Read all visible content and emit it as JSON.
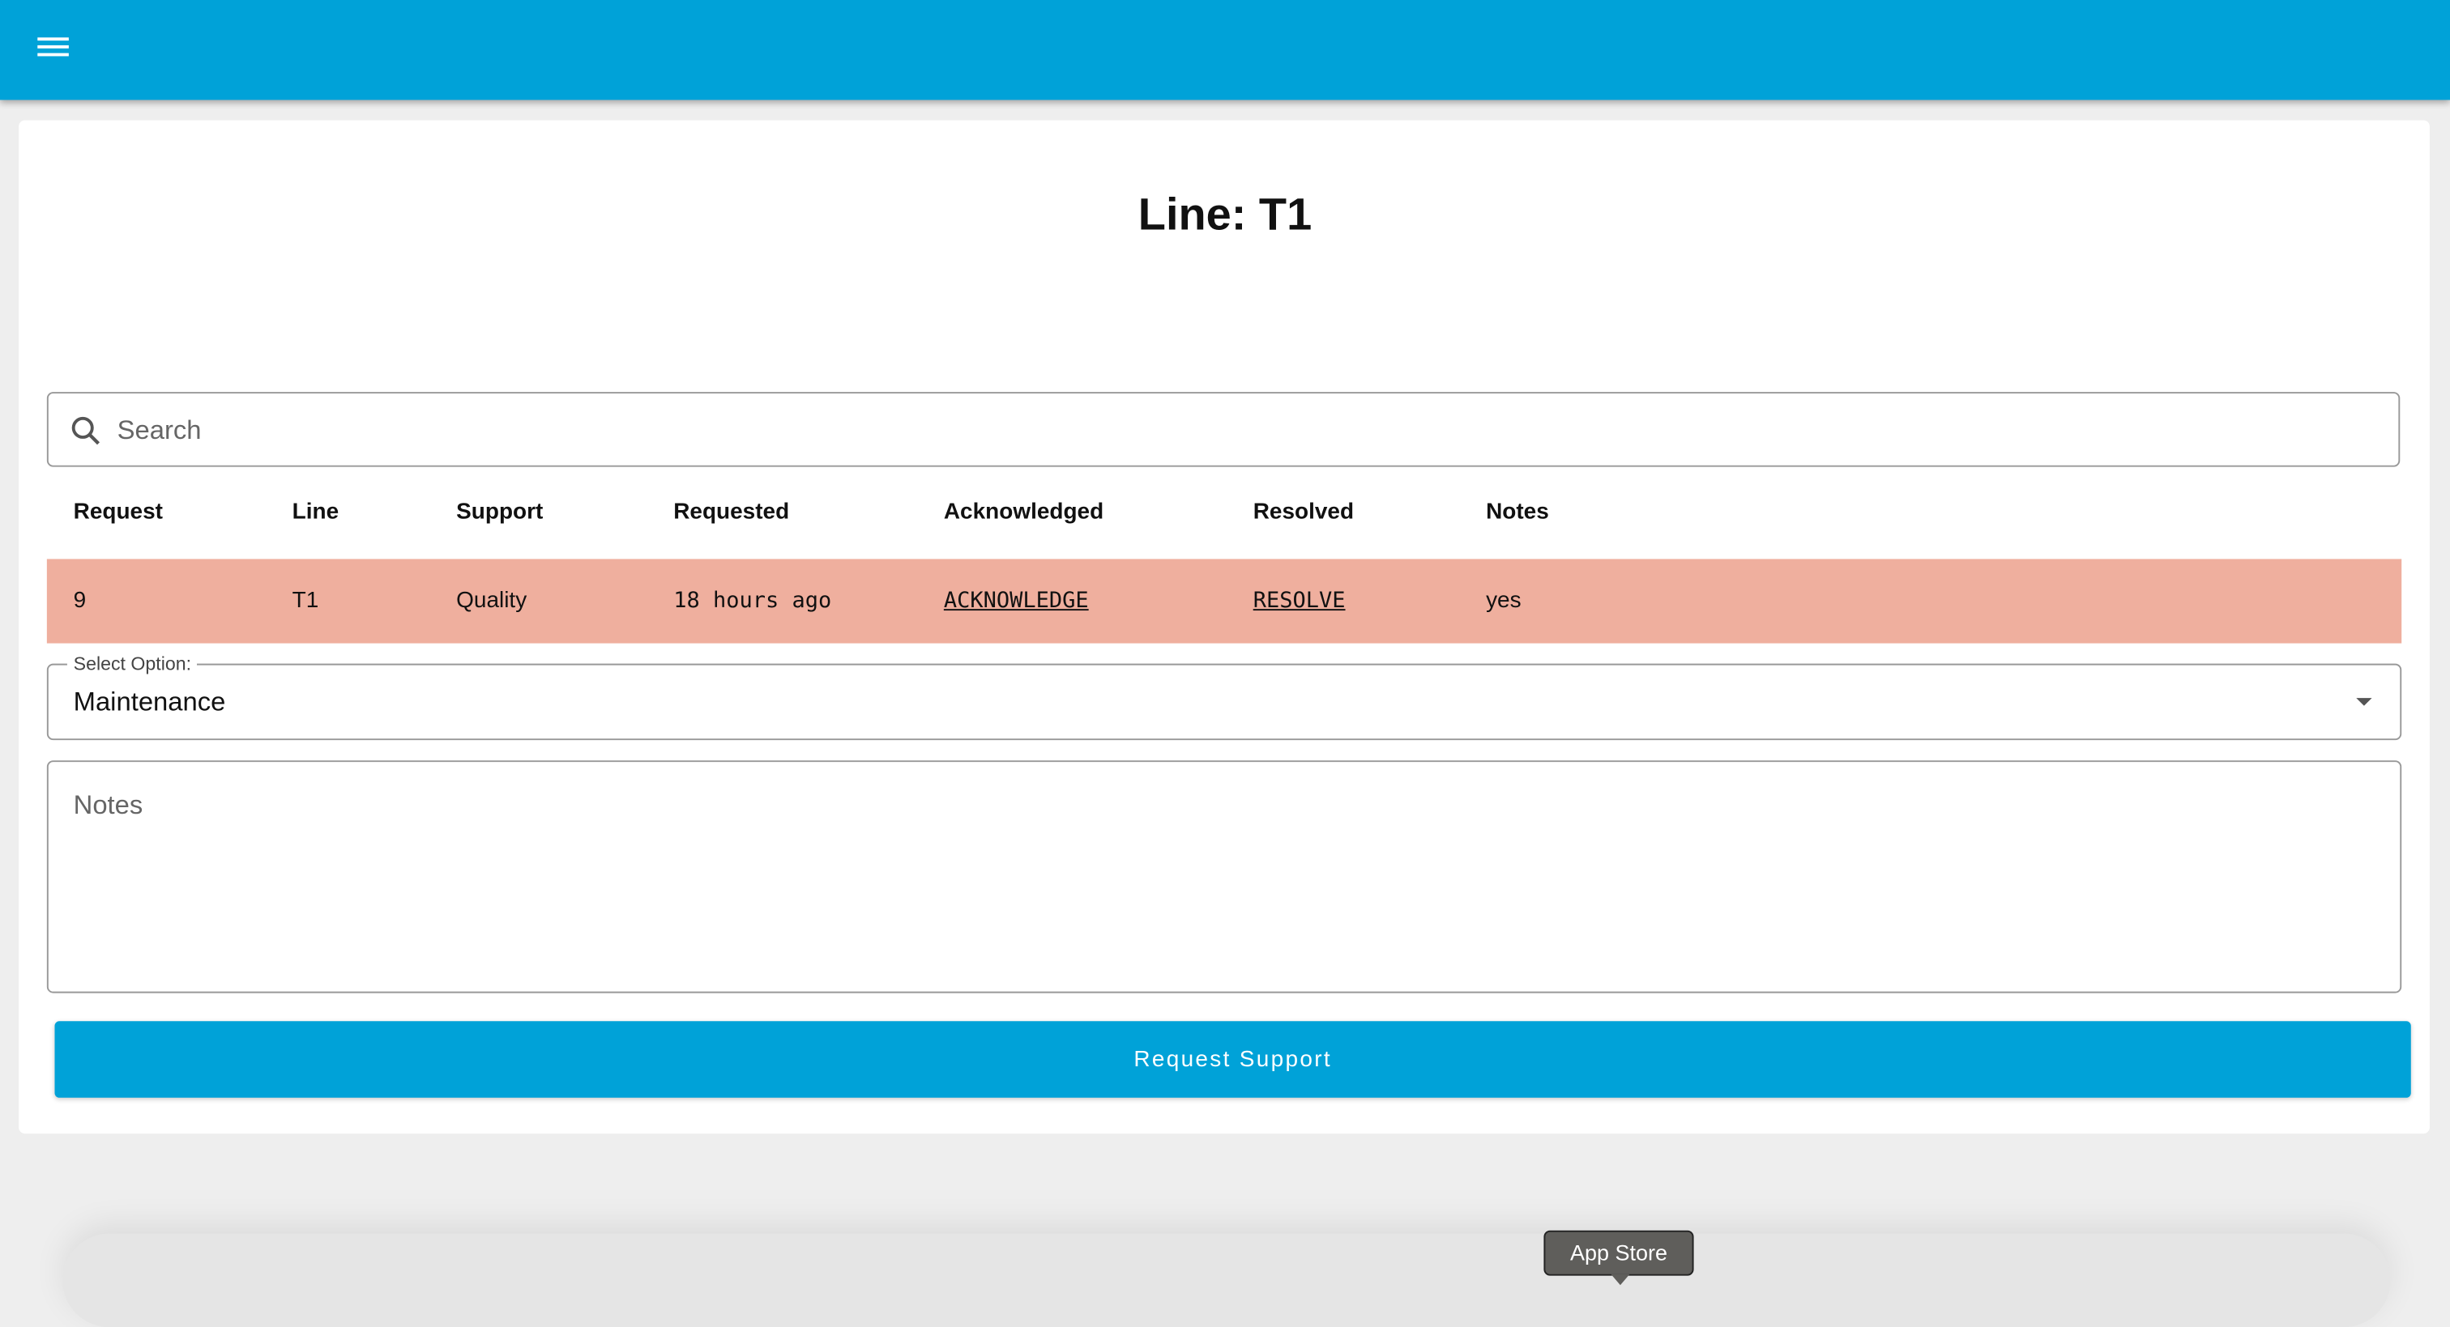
{
  "header": {
    "menu_icon": "hamburger-menu-icon",
    "color": "#00a2d8"
  },
  "page": {
    "title": "Line: T1"
  },
  "search": {
    "placeholder": "Search",
    "value": "",
    "icon": "search-icon"
  },
  "table": {
    "columns": [
      "Request",
      "Line",
      "Support",
      "Requested",
      "Acknowledged",
      "Resolved",
      "Notes"
    ],
    "rows": [
      {
        "request": "9",
        "line": "T1",
        "support": "Quality",
        "requested": "18 hours ago",
        "acknowledged": "ACKNOWLEDGE",
        "resolved": "RESOLVE",
        "notes": "yes",
        "row_color": "#efaf9e"
      }
    ]
  },
  "form": {
    "select_label": "Select Option:",
    "select_value": "Maintenance",
    "notes_placeholder": "Notes",
    "submit_label": "Request Support"
  },
  "dock": {
    "tooltip": "App Store"
  }
}
